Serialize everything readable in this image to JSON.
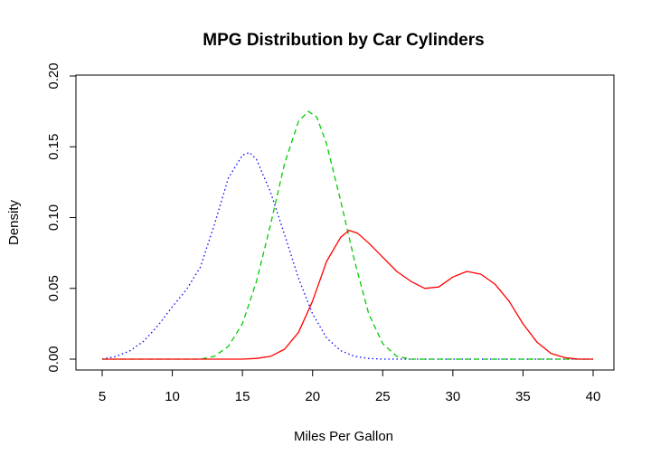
{
  "chart_data": {
    "type": "line",
    "title": "MPG Distribution by Car Cylinders",
    "xlabel": "Miles Per Gallon",
    "ylabel": "Density",
    "xlim": [
      4.5,
      40
    ],
    "ylim": [
      0,
      0.2
    ],
    "x_ticks": [
      "5",
      "10",
      "15",
      "20",
      "25",
      "30",
      "35",
      "40"
    ],
    "y_ticks": [
      "0.00",
      "0.05",
      "0.10",
      "0.15",
      "0.20"
    ],
    "grid": false,
    "legend": "none",
    "series": [
      {
        "color": "#0000ff",
        "line_style": "dotted",
        "x": [
          5,
          6,
          7,
          8,
          9,
          10,
          11,
          12,
          13,
          14,
          15,
          15.5,
          16,
          17,
          18,
          19,
          20,
          21,
          22,
          23,
          24,
          25,
          26,
          28,
          30,
          40
        ],
        "y": [
          0.0,
          0.002,
          0.006,
          0.013,
          0.024,
          0.037,
          0.049,
          0.065,
          0.095,
          0.128,
          0.144,
          0.146,
          0.141,
          0.118,
          0.088,
          0.057,
          0.032,
          0.015,
          0.006,
          0.002,
          0.0005,
          0.0,
          0.0,
          0.0,
          0.0,
          0.0
        ]
      },
      {
        "color": "#00cd00",
        "line_style": "dashed",
        "x": [
          5,
          10,
          12,
          13,
          14,
          15,
          16,
          17,
          18,
          19,
          19.7,
          20.3,
          21,
          22,
          23,
          24,
          25,
          26,
          27,
          30,
          40
        ],
        "y": [
          0.0,
          0.0,
          0.0,
          0.002,
          0.009,
          0.025,
          0.055,
          0.095,
          0.138,
          0.168,
          0.175,
          0.171,
          0.152,
          0.112,
          0.069,
          0.032,
          0.011,
          0.002,
          0.0,
          0.0,
          0.0
        ]
      },
      {
        "color": "#ff0000",
        "line_style": "solid",
        "x": [
          5,
          15,
          16,
          17,
          18,
          19,
          20,
          21,
          22,
          22.6,
          23.2,
          24,
          25,
          26,
          27,
          28,
          29,
          30,
          31,
          32,
          33,
          34,
          35,
          36,
          37,
          38,
          39,
          40
        ],
        "y": [
          0.0,
          0.0,
          0.0005,
          0.002,
          0.007,
          0.019,
          0.041,
          0.069,
          0.086,
          0.091,
          0.089,
          0.082,
          0.072,
          0.062,
          0.055,
          0.05,
          0.051,
          0.058,
          0.062,
          0.06,
          0.053,
          0.041,
          0.025,
          0.012,
          0.004,
          0.001,
          0.0,
          0.0
        ]
      }
    ]
  }
}
